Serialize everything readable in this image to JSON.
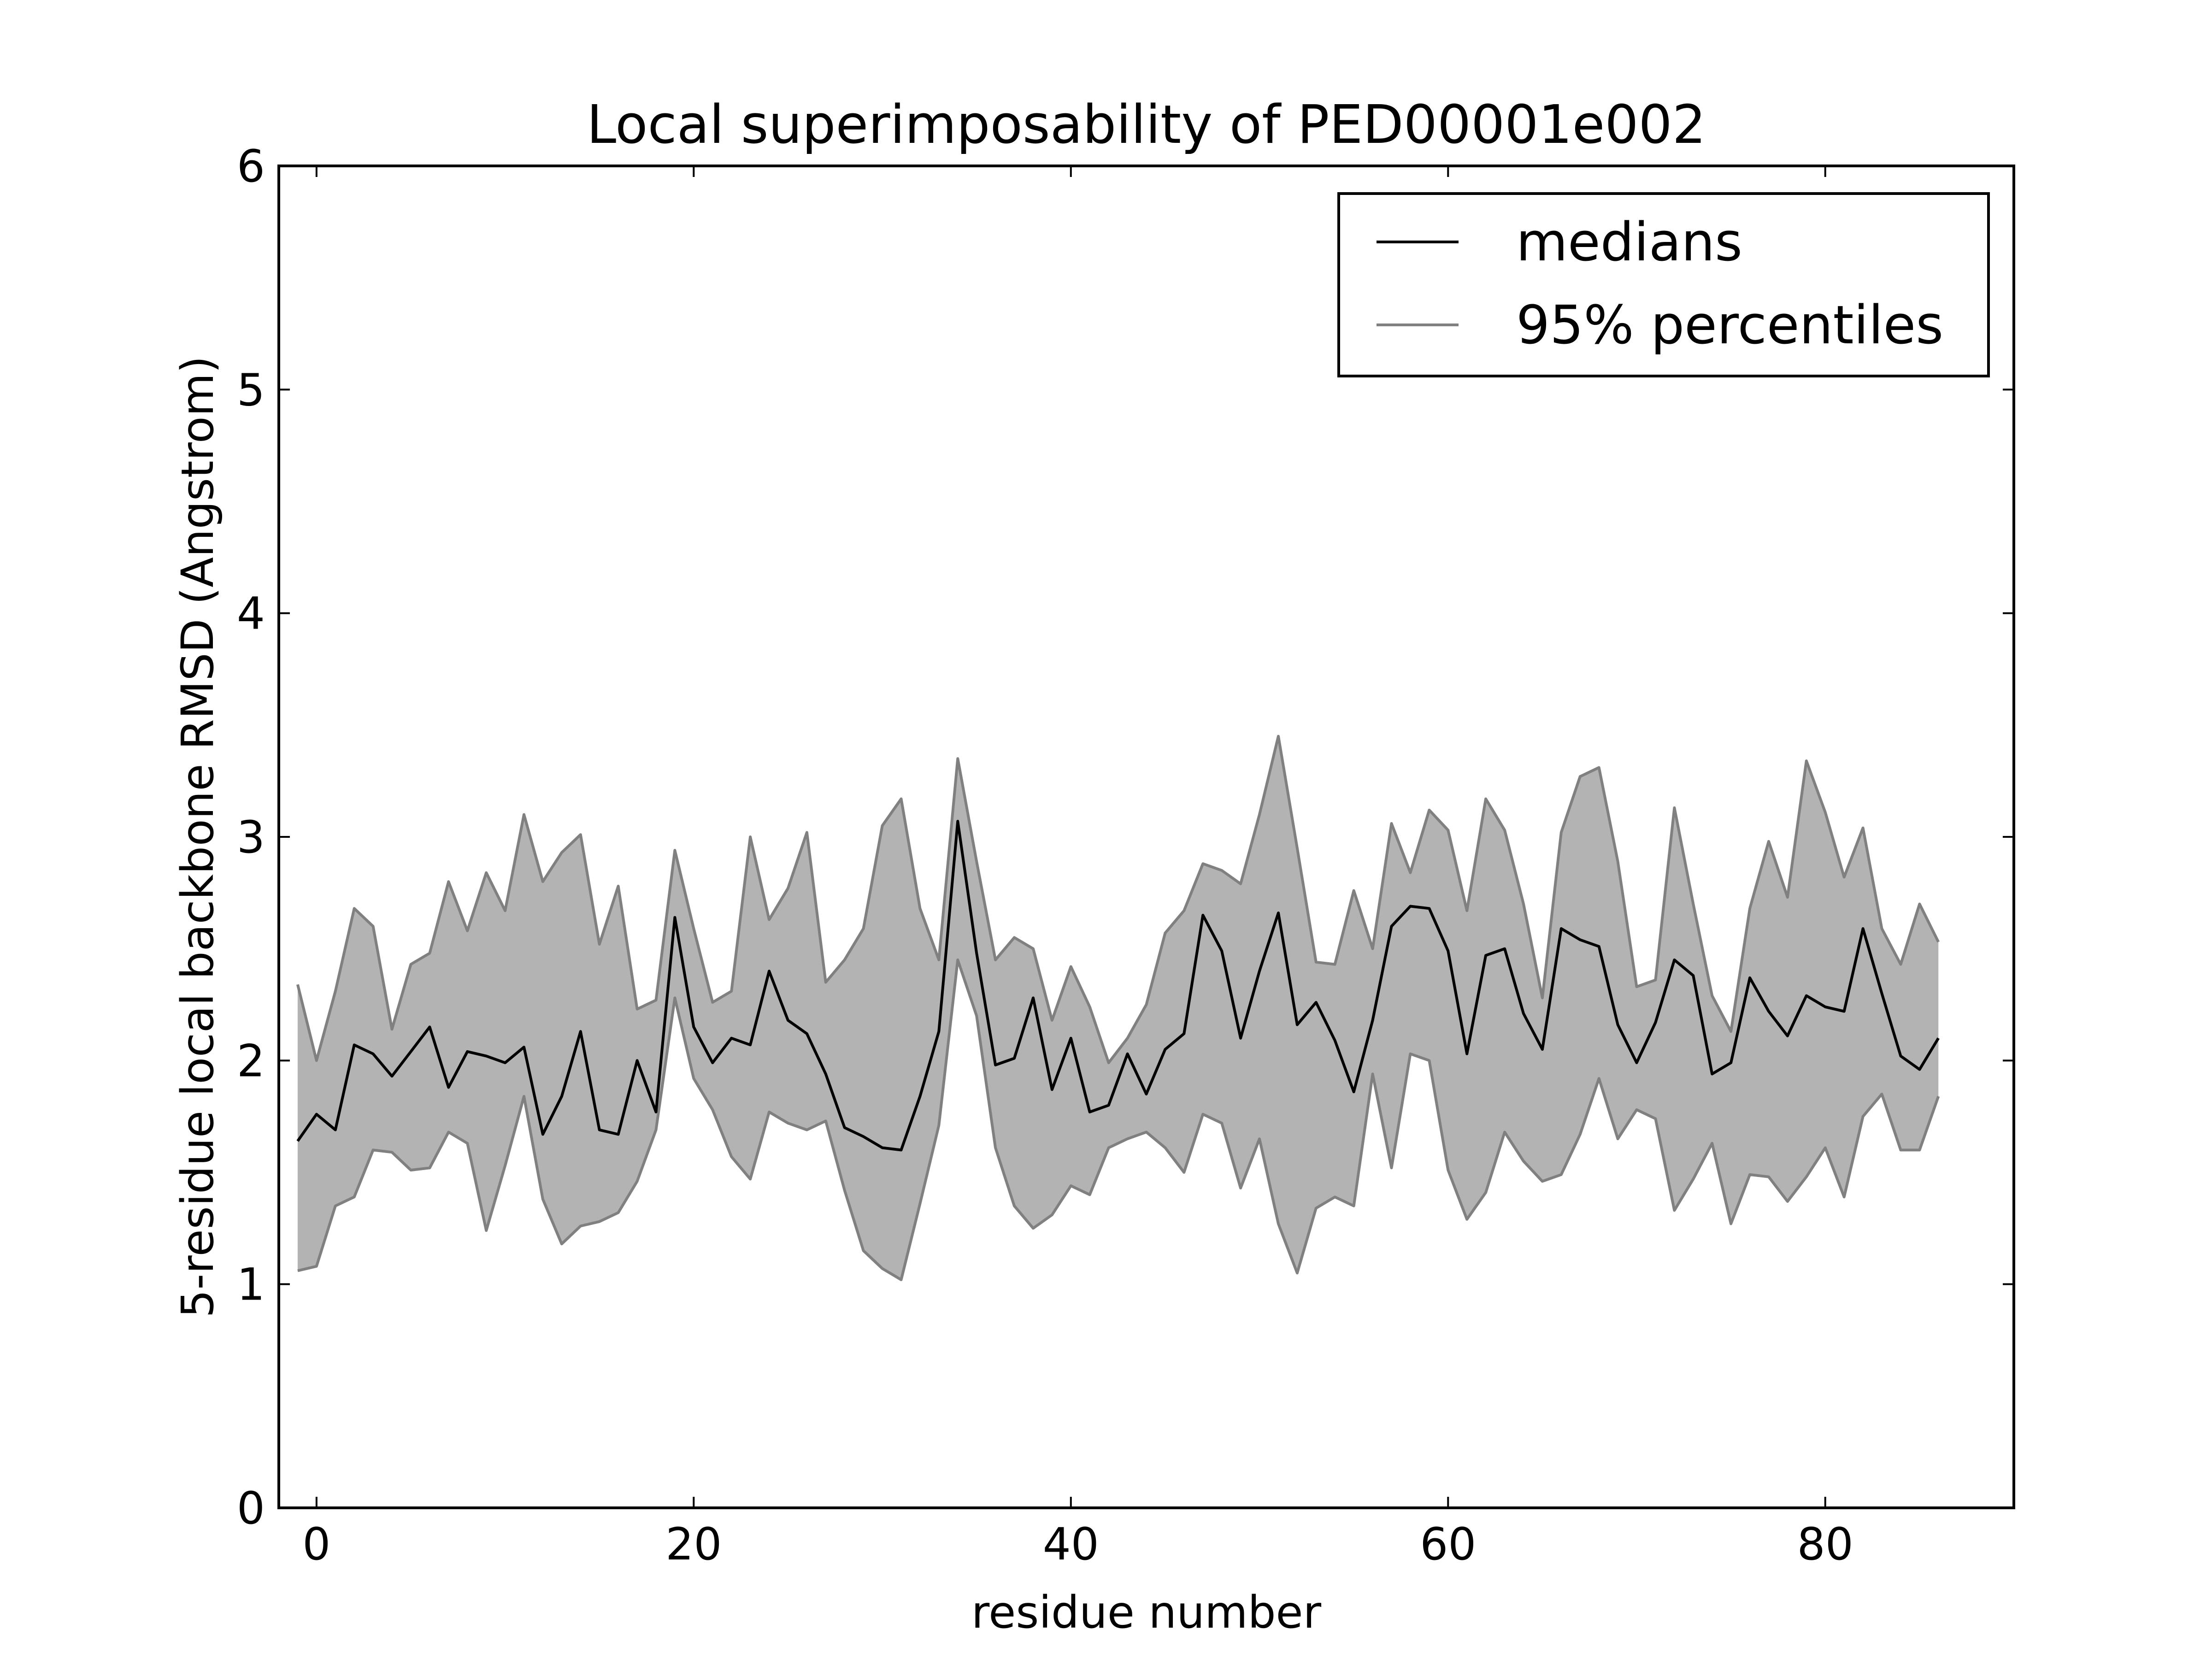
{
  "chart_data": {
    "type": "area",
    "title": "Local superimposability of PED00001e002",
    "xlabel": "residue number",
    "ylabel": "5-residue local backbone RMSD (Angstrom)",
    "xlim": [
      -2,
      90
    ],
    "ylim": [
      0,
      6
    ],
    "xticks": [
      0,
      20,
      40,
      60,
      80
    ],
    "yticks": [
      0,
      1,
      2,
      3,
      4,
      5,
      6
    ],
    "grid": false,
    "legend_position": "top-right",
    "x": [
      -1,
      0,
      1,
      2,
      3,
      4,
      5,
      6,
      7,
      8,
      9,
      10,
      11,
      12,
      13,
      14,
      15,
      16,
      17,
      18,
      19,
      20,
      21,
      22,
      23,
      24,
      25,
      26,
      27,
      28,
      29,
      30,
      31,
      32,
      33,
      34,
      35,
      36,
      37,
      38,
      39,
      40,
      41,
      42,
      43,
      44,
      45,
      46,
      47,
      48,
      49,
      50,
      51,
      52,
      53,
      54,
      55,
      56,
      57,
      58,
      59,
      60,
      61,
      62,
      63,
      64,
      65,
      66,
      67,
      68,
      69,
      70,
      71,
      72,
      73,
      74,
      75,
      76,
      77,
      78,
      79,
      80,
      81,
      82,
      83,
      84,
      85,
      86
    ],
    "series": [
      {
        "name": "medians",
        "color": "#000000",
        "values": [
          1.64,
          1.76,
          1.69,
          2.07,
          2.03,
          1.93,
          2.04,
          2.15,
          1.88,
          2.04,
          2.02,
          1.99,
          2.06,
          1.67,
          1.84,
          2.13,
          1.69,
          1.67,
          2.0,
          1.77,
          2.64,
          2.15,
          1.99,
          2.1,
          2.07,
          2.4,
          2.18,
          2.12,
          1.94,
          1.7,
          1.66,
          1.61,
          1.6,
          1.84,
          2.13,
          3.07,
          2.48,
          1.98,
          2.01,
          2.28,
          1.87,
          2.1,
          1.77,
          1.8,
          2.03,
          1.85,
          2.05,
          2.12,
          2.65,
          2.49,
          2.1,
          2.4,
          2.66,
          2.16,
          2.26,
          2.09,
          1.86,
          2.18,
          2.6,
          2.69,
          2.68,
          2.49,
          2.03,
          2.47,
          2.5,
          2.21,
          2.05,
          2.59,
          2.54,
          2.51,
          2.16,
          1.99,
          2.17,
          2.45,
          2.38,
          1.94,
          1.99,
          2.37,
          2.22,
          2.11,
          2.29,
          2.24,
          2.22,
          2.59,
          2.3,
          2.02,
          1.96,
          2.1
        ]
      },
      {
        "name": "95% percentiles",
        "color": "#808080",
        "fill": "#b3b3b3",
        "upper": [
          2.34,
          2.0,
          2.31,
          2.68,
          2.6,
          2.14,
          2.43,
          2.48,
          2.8,
          2.58,
          2.84,
          2.67,
          3.1,
          2.8,
          2.93,
          3.01,
          2.52,
          2.78,
          2.23,
          2.27,
          2.94,
          2.59,
          2.26,
          2.31,
          3.0,
          2.63,
          2.77,
          3.02,
          2.35,
          2.45,
          2.59,
          3.05,
          3.17,
          2.68,
          2.45,
          3.35,
          2.89,
          2.45,
          2.55,
          2.5,
          2.18,
          2.42,
          2.24,
          1.99,
          2.1,
          2.25,
          2.57,
          2.67,
          2.88,
          2.85,
          2.79,
          3.1,
          3.45,
          2.95,
          2.44,
          2.43,
          2.76,
          2.5,
          3.06,
          2.84,
          3.12,
          3.03,
          2.67,
          3.17,
          3.03,
          2.7,
          2.28,
          3.02,
          3.27,
          3.31,
          2.89,
          2.33,
          2.36,
          3.13,
          2.7,
          2.29,
          2.13,
          2.68,
          2.98,
          2.73,
          3.34,
          3.11,
          2.82,
          3.04,
          2.59,
          2.43,
          2.7,
          2.53
        ],
        "lower": [
          1.06,
          1.08,
          1.35,
          1.39,
          1.6,
          1.59,
          1.51,
          1.52,
          1.68,
          1.63,
          1.24,
          1.53,
          1.84,
          1.38,
          1.18,
          1.26,
          1.28,
          1.32,
          1.46,
          1.69,
          2.28,
          1.92,
          1.78,
          1.57,
          1.47,
          1.77,
          1.72,
          1.69,
          1.73,
          1.42,
          1.15,
          1.07,
          1.02,
          1.36,
          1.71,
          2.45,
          2.2,
          1.61,
          1.35,
          1.25,
          1.31,
          1.44,
          1.4,
          1.61,
          1.65,
          1.68,
          1.61,
          1.5,
          1.76,
          1.72,
          1.43,
          1.65,
          1.27,
          1.05,
          1.34,
          1.39,
          1.35,
          1.94,
          1.52,
          2.03,
          2.0,
          1.51,
          1.29,
          1.41,
          1.68,
          1.55,
          1.46,
          1.49,
          1.67,
          1.92,
          1.65,
          1.78,
          1.74,
          1.33,
          1.47,
          1.63,
          1.27,
          1.49,
          1.48,
          1.37,
          1.48,
          1.61,
          1.39,
          1.75,
          1.85,
          1.6,
          1.6,
          1.84
        ]
      }
    ]
  }
}
